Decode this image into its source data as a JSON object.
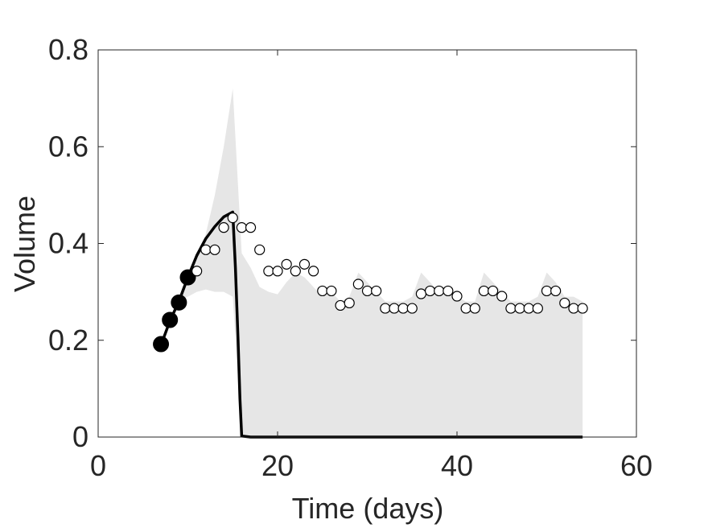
{
  "chart_data": {
    "type": "scatter",
    "xlabel": "Time (days)",
    "ylabel": "Volume",
    "xlim": [
      0,
      60
    ],
    "ylim": [
      0,
      0.8
    ],
    "xticks": [
      0,
      20,
      40,
      60
    ],
    "xtick_labels": [
      "0",
      "20",
      "40",
      "60"
    ],
    "yticks": [
      0,
      0.2,
      0.4,
      0.6,
      0.8
    ],
    "ytick_labels": [
      "0",
      "0.2",
      "0.4",
      "0.6",
      "0.8"
    ],
    "grid": false,
    "colors": {
      "band": "#e6e6e6",
      "line": "#000000",
      "axis": "#262626",
      "marker_fill": "#000000",
      "marker_open_fill": "#ffffff"
    },
    "band": {
      "x": [
        7,
        8,
        9,
        10,
        11,
        12,
        13,
        14,
        15,
        16,
        17,
        18,
        19,
        20,
        21,
        22,
        23,
        24,
        25,
        26,
        27,
        28,
        29,
        30,
        31,
        32,
        33,
        34,
        35,
        36,
        37,
        38,
        39,
        40,
        41,
        42,
        43,
        44,
        45,
        46,
        47,
        48,
        49,
        50,
        51,
        52,
        53,
        54
      ],
      "upper": [
        0.19,
        0.24,
        0.28,
        0.33,
        0.37,
        0.42,
        0.5,
        0.6,
        0.72,
        0.38,
        0.35,
        0.31,
        0.3,
        0.295,
        0.32,
        0.34,
        0.33,
        0.31,
        0.29,
        0.3,
        0.28,
        0.29,
        0.34,
        0.32,
        0.3,
        0.28,
        0.28,
        0.28,
        0.29,
        0.34,
        0.32,
        0.3,
        0.3,
        0.29,
        0.28,
        0.28,
        0.34,
        0.32,
        0.3,
        0.28,
        0.28,
        0.28,
        0.29,
        0.34,
        0.32,
        0.29,
        0.29,
        0.28
      ],
      "lower": [
        0.19,
        0.24,
        0.28,
        0.29,
        0.3,
        0.305,
        0.3,
        0.3,
        0.29,
        0,
        0,
        0,
        0,
        0,
        0,
        0,
        0,
        0,
        0,
        0,
        0,
        0,
        0,
        0,
        0,
        0,
        0,
        0,
        0,
        0,
        0,
        0,
        0,
        0,
        0,
        0,
        0,
        0,
        0,
        0,
        0,
        0,
        0,
        0,
        0,
        0,
        0,
        0
      ]
    },
    "series": [
      {
        "kind": "line",
        "x": [
          7,
          8,
          9,
          10,
          11,
          12,
          13,
          14,
          15,
          15.3,
          15.6,
          15.8,
          16,
          16.5,
          17,
          20,
          30,
          40,
          50,
          54
        ],
        "y": [
          0.19,
          0.24,
          0.28,
          0.33,
          0.375,
          0.41,
          0.435,
          0.455,
          0.465,
          0.35,
          0.2,
          0.08,
          0.002,
          0.001,
          0,
          0,
          0,
          0,
          0,
          0
        ]
      },
      {
        "kind": "filled-markers",
        "x": [
          7,
          8,
          9,
          10
        ],
        "y": [
          0.192,
          0.242,
          0.278,
          0.33
        ]
      },
      {
        "kind": "open-markers",
        "x": [
          11,
          12,
          13,
          14,
          15,
          16,
          17,
          18,
          19,
          20,
          21,
          22,
          23,
          24,
          25,
          26,
          27,
          28,
          29,
          30,
          31,
          32,
          33,
          34,
          35,
          36,
          37,
          38,
          39,
          40,
          41,
          42,
          43,
          44,
          45,
          46,
          47,
          48,
          49,
          50,
          51,
          52,
          53,
          54
        ],
        "y": [
          0.343,
          0.387,
          0.387,
          0.433,
          0.453,
          0.433,
          0.433,
          0.387,
          0.343,
          0.343,
          0.357,
          0.343,
          0.357,
          0.343,
          0.302,
          0.302,
          0.272,
          0.277,
          0.316,
          0.302,
          0.302,
          0.266,
          0.266,
          0.266,
          0.266,
          0.296,
          0.302,
          0.302,
          0.302,
          0.291,
          0.266,
          0.266,
          0.302,
          0.302,
          0.291,
          0.266,
          0.266,
          0.266,
          0.266,
          0.302,
          0.302,
          0.277,
          0.266,
          0.266
        ]
      }
    ]
  }
}
